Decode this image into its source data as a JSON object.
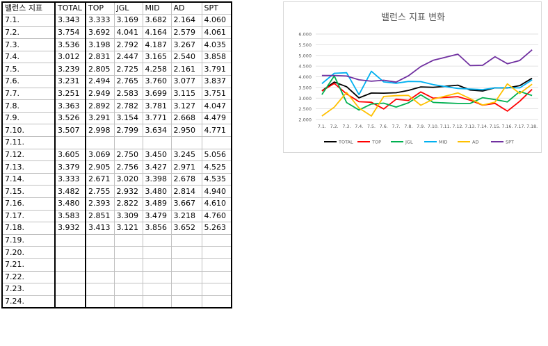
{
  "table": {
    "headers": [
      "밸런스 지표",
      "TOTAL",
      "TOP",
      "JGL",
      "MID",
      "AD",
      "SPT"
    ],
    "rows": [
      [
        "7.1.",
        "3.343",
        "3.333",
        "3.169",
        "3.682",
        "2.164",
        "4.060"
      ],
      [
        "7.2.",
        "3.754",
        "3.692",
        "4.041",
        "4.164",
        "2.579",
        "4.061"
      ],
      [
        "7.3.",
        "3.536",
        "3.198",
        "2.792",
        "4.187",
        "3.267",
        "4.035"
      ],
      [
        "7.4.",
        "3.012",
        "2.831",
        "2.447",
        "3.165",
        "2.540",
        "3.858"
      ],
      [
        "7.5.",
        "3.239",
        "2.805",
        "2.725",
        "4.258",
        "2.161",
        "3.791"
      ],
      [
        "7.6.",
        "3.231",
        "2.494",
        "2.765",
        "3.760",
        "3.077",
        "3.837"
      ],
      [
        "7.7.",
        "3.251",
        "2.949",
        "2.583",
        "3.699",
        "3.115",
        "3.751"
      ],
      [
        "7.8.",
        "3.363",
        "2.892",
        "2.782",
        "3.781",
        "3.127",
        "4.047"
      ],
      [
        "7.9.",
        "3.526",
        "3.291",
        "3.154",
        "3.771",
        "2.668",
        "4.479"
      ],
      [
        "7.10.",
        "3.507",
        "2.998",
        "2.799",
        "3.634",
        "2.950",
        "4.771"
      ],
      [
        "7.11.",
        "",
        "",
        "",
        "",
        "",
        ""
      ],
      [
        "7.12.",
        "3.605",
        "3.069",
        "2.750",
        "3.450",
        "3.245",
        "5.056"
      ],
      [
        "7.13.",
        "3.379",
        "2.905",
        "2.756",
        "3.427",
        "2.971",
        "4.525"
      ],
      [
        "7.14.",
        "3.333",
        "2.671",
        "3.020",
        "3.398",
        "2.678",
        "4.535"
      ],
      [
        "7.15.",
        "3.482",
        "2.755",
        "2.932",
        "3.480",
        "2.814",
        "4.940"
      ],
      [
        "7.16.",
        "3.480",
        "2.393",
        "2.822",
        "3.489",
        "3.667",
        "4.610"
      ],
      [
        "7.17.",
        "3.583",
        "2.851",
        "3.309",
        "3.479",
        "3.218",
        "4.760"
      ],
      [
        "7.18.",
        "3.932",
        "3.413",
        "3.121",
        "3.856",
        "3.652",
        "5.263"
      ],
      [
        "7.19.",
        "",
        "",
        "",
        "",
        "",
        ""
      ],
      [
        "7.20.",
        "",
        "",
        "",
        "",
        "",
        ""
      ],
      [
        "7.21.",
        "",
        "",
        "",
        "",
        "",
        ""
      ],
      [
        "7.22.",
        "",
        "",
        "",
        "",
        "",
        ""
      ],
      [
        "7.23.",
        "",
        "",
        "",
        "",
        "",
        ""
      ],
      [
        "7.24.",
        "",
        "",
        "",
        "",
        "",
        ""
      ]
    ]
  },
  "chart_data": {
    "type": "line",
    "title": "밸런스 지표 변화",
    "categories": [
      "7.1.",
      "7.2.",
      "7.3.",
      "7.4.",
      "7.5.",
      "7.6.",
      "7.7.",
      "7.8.",
      "7.9.",
      "7.10.",
      "7.11.",
      "7.12.",
      "7.13.",
      "7.14.",
      "7.15.",
      "7.16.",
      "7.17.",
      "7.18."
    ],
    "ylim": [
      2,
      6
    ],
    "yticks": [
      "2.000",
      "2.500",
      "3.000",
      "3.500",
      "4.000",
      "4.500",
      "5.000",
      "5.500",
      "6.000"
    ],
    "grid": true,
    "legend_position": "bottom",
    "series": [
      {
        "name": "TOTAL",
        "color": "#000000",
        "values": [
          3.343,
          3.754,
          3.536,
          3.012,
          3.239,
          3.231,
          3.251,
          3.363,
          3.526,
          3.507,
          3.556,
          3.605,
          3.379,
          3.333,
          3.482,
          3.48,
          3.583,
          3.932
        ]
      },
      {
        "name": "TOP",
        "color": "#ff0000",
        "values": [
          3.333,
          3.692,
          3.198,
          2.831,
          2.805,
          2.494,
          2.949,
          2.892,
          3.291,
          2.998,
          3.034,
          3.069,
          2.905,
          2.671,
          2.755,
          2.393,
          2.851,
          3.413
        ]
      },
      {
        "name": "JGL",
        "color": "#00b050",
        "values": [
          3.169,
          4.041,
          2.792,
          2.447,
          2.725,
          2.765,
          2.583,
          2.782,
          3.154,
          2.799,
          2.775,
          2.75,
          2.756,
          3.02,
          2.932,
          2.822,
          3.309,
          3.121
        ]
      },
      {
        "name": "MID",
        "color": "#00b0f0",
        "values": [
          3.682,
          4.164,
          4.187,
          3.165,
          4.258,
          3.76,
          3.699,
          3.781,
          3.771,
          3.634,
          3.542,
          3.45,
          3.427,
          3.398,
          3.48,
          3.489,
          3.479,
          3.856
        ]
      },
      {
        "name": "AD",
        "color": "#ffc000",
        "values": [
          2.164,
          2.579,
          3.267,
          2.54,
          2.161,
          3.077,
          3.115,
          3.127,
          2.668,
          2.95,
          3.098,
          3.245,
          2.971,
          2.678,
          2.814,
          3.667,
          3.218,
          3.652
        ]
      },
      {
        "name": "SPT",
        "color": "#7030a0",
        "values": [
          4.06,
          4.061,
          4.035,
          3.858,
          3.791,
          3.837,
          3.751,
          4.047,
          4.479,
          4.771,
          4.914,
          5.056,
          4.525,
          4.535,
          4.94,
          4.61,
          4.76,
          5.263
        ]
      }
    ]
  }
}
